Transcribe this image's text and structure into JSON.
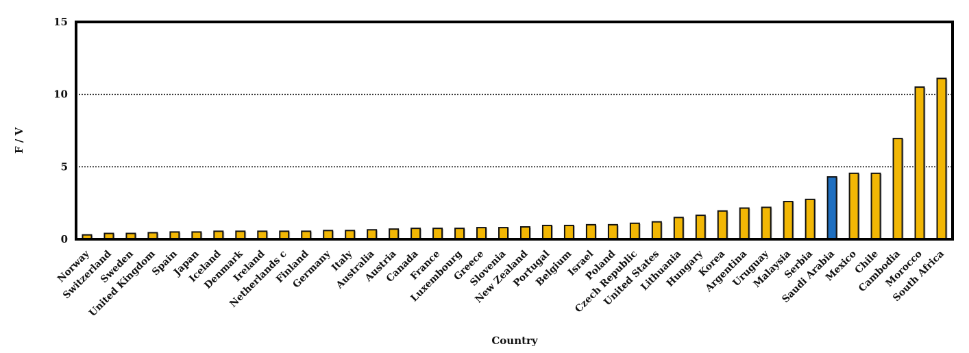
{
  "chart_data": {
    "type": "bar",
    "title": "",
    "xlabel": "Country",
    "ylabel": "F / V",
    "ylim": [
      0,
      15
    ],
    "yticks": [
      0,
      5,
      10,
      15
    ],
    "grid": "horizontal dotted",
    "colors": {
      "default": "#F2B705",
      "highlight": "#1F6FC0",
      "outline": "#111111"
    },
    "highlight_category": "Saudi Arabia",
    "categories": [
      "Norway",
      "Switzerland",
      "Sweden",
      "United Kingdom",
      "Spain",
      "Japan",
      "Iceland",
      "Denmark",
      "Ireland",
      "Netherlands c",
      "Finland",
      "Germany",
      "Italy",
      "Australia",
      "Austria",
      "Canada",
      "France",
      "Luxembourg",
      "Greece",
      "Slovenia",
      "New Zealand",
      "Portugal",
      "Belgium",
      "Israel",
      "Poland",
      "Czech Republic",
      "United States",
      "Lithuania",
      "Hungary",
      "Korea",
      "Argentina",
      "Uruguay",
      "Malaysia",
      "Serbia",
      "Saudi Arabia",
      "Mexico",
      "Chile",
      "Cambodia",
      "Morocco",
      "South Africa"
    ],
    "values": [
      0.3,
      0.4,
      0.4,
      0.45,
      0.5,
      0.5,
      0.55,
      0.55,
      0.55,
      0.55,
      0.55,
      0.6,
      0.6,
      0.65,
      0.7,
      0.75,
      0.75,
      0.75,
      0.8,
      0.8,
      0.85,
      0.95,
      0.95,
      1.0,
      1.0,
      1.1,
      1.2,
      1.5,
      1.65,
      1.95,
      2.15,
      2.2,
      2.6,
      2.75,
      4.3,
      4.55,
      4.55,
      6.95,
      10.5,
      11.1
    ]
  }
}
